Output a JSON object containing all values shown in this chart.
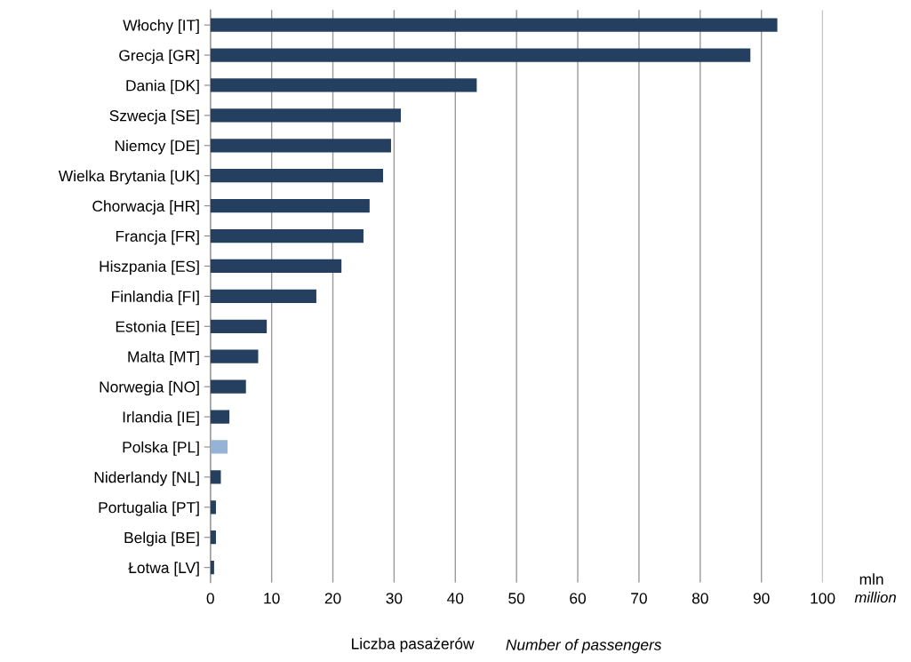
{
  "chart_data": {
    "type": "bar",
    "orientation": "horizontal",
    "categories": [
      "Włochy [IT]",
      "Grecja [GR]",
      "Dania [DK]",
      "Szwecja [SE]",
      "Niemcy [DE]",
      "Wielka Brytania [UK]",
      "Chorwacja [HR]",
      "Francja [FR]",
      "Hiszpania [ES]",
      "Finlandia [FI]",
      "Estonia [EE]",
      "Malta [MT]",
      "Norwegia [NO]",
      "Irlandia [IE]",
      "Polska [PL]",
      "Niderlandy [NL]",
      "Portugalia [PT]",
      "Belgia [BE]",
      "Łotwa [LV]"
    ],
    "values": [
      92.6,
      88.2,
      43.5,
      31.1,
      29.5,
      28.2,
      26.0,
      25.0,
      21.4,
      17.3,
      9.2,
      7.8,
      5.8,
      3.1,
      2.8,
      1.7,
      0.9,
      0.9,
      0.6
    ],
    "colors": [
      "#243f60",
      "#243f60",
      "#243f60",
      "#243f60",
      "#243f60",
      "#243f60",
      "#243f60",
      "#243f60",
      "#243f60",
      "#243f60",
      "#243f60",
      "#243f60",
      "#243f60",
      "#243f60",
      "#95b3d7",
      "#243f60",
      "#243f60",
      "#243f60",
      "#243f60"
    ],
    "xlim": [
      0,
      100
    ],
    "xticks": [
      0,
      10,
      20,
      30,
      40,
      50,
      60,
      70,
      80,
      90,
      100
    ],
    "grid": "x",
    "xlabel": "Liczba pasażerów",
    "annotations": [
      "Number of passengers",
      "mln",
      "million"
    ]
  }
}
